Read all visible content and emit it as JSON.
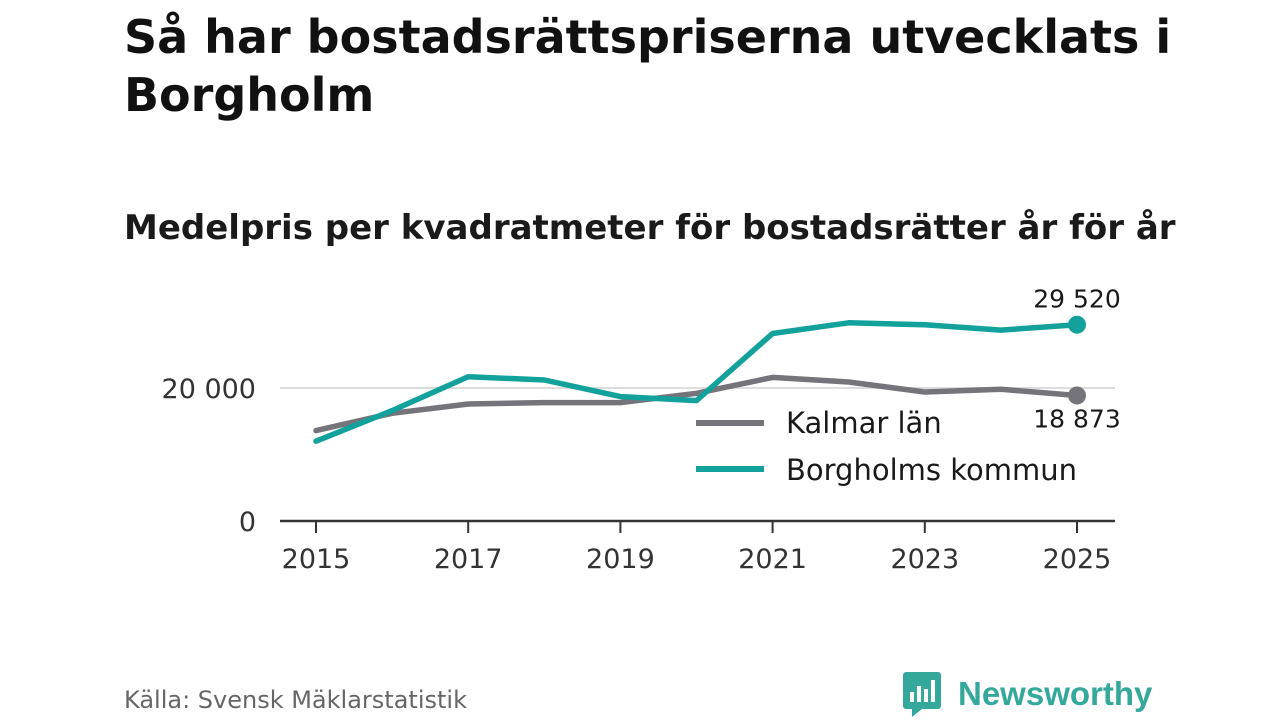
{
  "title": "Så har bostadsrättspriserna utvecklats i Borgholm",
  "subtitle": "Medelpris per kvadratmeter för bostadsrätter år för år",
  "source": "Källa: Svensk Mäklarstatistik",
  "brand": "Newsworthy",
  "colors": {
    "kalmar": "#75747b",
    "borgholm": "#13a19b",
    "grid": "#dddddd",
    "axis": "#333333",
    "brand": "#35a89c"
  },
  "chart_data": {
    "type": "line",
    "x": [
      2015,
      2016,
      2017,
      2018,
      2019,
      2020,
      2021,
      2022,
      2023,
      2024,
      2025
    ],
    "series": [
      {
        "name": "Kalmar län",
        "values": [
          13600,
          16200,
          17600,
          17800,
          17800,
          19200,
          21600,
          20900,
          19400,
          19800,
          18873
        ],
        "end_label": "18 873"
      },
      {
        "name": "Borgholms kommun",
        "values": [
          12000,
          16600,
          21700,
          21200,
          18700,
          18100,
          28200,
          29800,
          29500,
          28700,
          29520
        ],
        "end_label": "29 520"
      }
    ],
    "ylim": [
      0,
      30000
    ],
    "yticks": [
      {
        "value": 0,
        "label": "0"
      },
      {
        "value": 20000,
        "label": "20 000"
      }
    ],
    "xticks": [
      {
        "value": 2015,
        "label": "2015"
      },
      {
        "value": 2017,
        "label": "2017"
      },
      {
        "value": 2019,
        "label": "2019"
      },
      {
        "value": 2021,
        "label": "2021"
      },
      {
        "value": 2023,
        "label": "2023"
      },
      {
        "value": 2025,
        "label": "2025"
      }
    ],
    "legend": [
      {
        "label": "Kalmar län"
      },
      {
        "label": "Borgholms kommun"
      }
    ],
    "xlabel": "",
    "ylabel": ""
  }
}
